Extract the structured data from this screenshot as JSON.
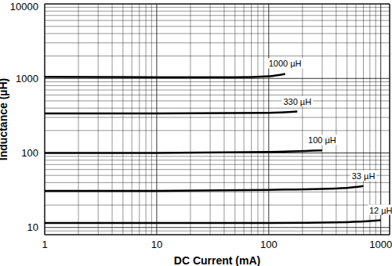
{
  "chart_data": {
    "type": "line",
    "x_label": "DC Current (mA)",
    "y_label": "Inductance (µH)",
    "log": true,
    "grid": true,
    "xlim": [
      1,
      1200
    ],
    "ylim": [
      8,
      10000
    ],
    "xticks": [
      1,
      10,
      100,
      1000
    ],
    "yticks": [
      10,
      100,
      1000,
      10000
    ],
    "series": [
      {
        "name": "1000 µH",
        "color": "#000000",
        "x": [
          1,
          10,
          50,
          100,
          140
        ],
        "values": [
          1050,
          1040,
          1040,
          1070,
          1150
        ]
      },
      {
        "name": "330 µH",
        "color": "#000000",
        "x": [
          1,
          10,
          100,
          180
        ],
        "values": [
          340,
          340,
          345,
          360
        ]
      },
      {
        "name": "100 µH",
        "color": "#000000",
        "x": [
          1,
          10,
          100,
          300
        ],
        "values": [
          100,
          100,
          103,
          108
        ]
      },
      {
        "name": "33 µH",
        "color": "#000000",
        "x": [
          1,
          10,
          100,
          500,
          700
        ],
        "values": [
          31,
          31,
          32,
          34,
          36
        ]
      },
      {
        "name": "12 µH",
        "color": "#000000",
        "x": [
          1,
          10,
          100,
          500,
          1000
        ],
        "values": [
          11.5,
          11.5,
          11.5,
          11.8,
          12.5
        ]
      }
    ]
  }
}
